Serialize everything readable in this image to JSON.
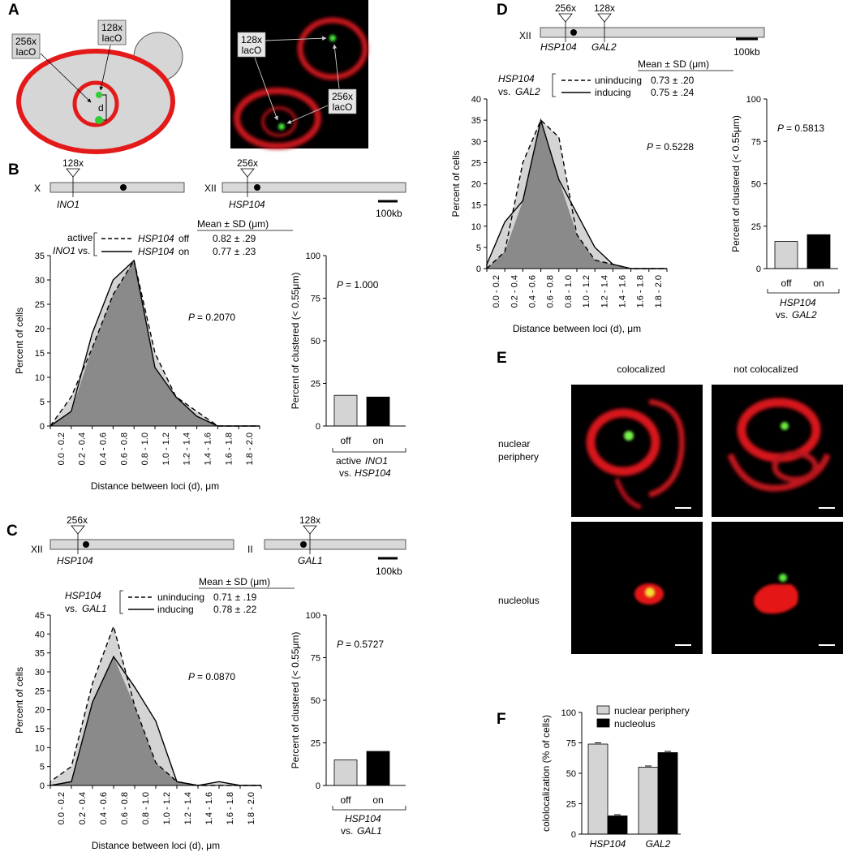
{
  "panels": {
    "A": {
      "label": "A",
      "schematic": {
        "lac128": "128x",
        "lac128b": "lacO",
        "lac256": "256x",
        "lac256b": "lacO",
        "d": "d"
      },
      "micro": {
        "lac128": "128x",
        "lac128b": "lacO",
        "lac256": "256x",
        "lac256b": "lacO"
      }
    },
    "B": {
      "label": "B",
      "chrom1": {
        "name": "X",
        "gene": "INO1",
        "mark": "128x"
      },
      "chrom2": {
        "name": "XII",
        "gene": "HSP104",
        "mark": "256x"
      },
      "scalebar": "100kb",
      "legend": {
        "header": "Mean ± SD (μm)",
        "group1": "active",
        "group2": "INO1",
        "group2b": "vs.",
        "row1_gene": "HSP104",
        "row1_state": "off",
        "row1_val": "0.82 ± .29",
        "row2_gene": "HSP104",
        "row2_state": "on",
        "row2_val": "0.77 ± .23"
      },
      "bar_sub1": "active",
      "bar_sub1b": "INO1",
      "bar_sub2": "vs.",
      "bar_sub2b": "HSP104"
    },
    "C": {
      "label": "C",
      "chrom1": {
        "name": "XII",
        "gene": "HSP104",
        "mark": "256x"
      },
      "chrom2": {
        "name": "II",
        "gene": "GAL1",
        "mark": "128x"
      },
      "scalebar": "100kb",
      "legend": {
        "header": "Mean ± SD (μm)",
        "group1": "HSP104",
        "group2": "vs.",
        "group2b": "GAL1",
        "row1_state": "uninducing",
        "row1_val": "0.71 ± .19",
        "row2_state": "inducing",
        "row2_val": "0.78 ± .22"
      },
      "bar_sub1": "HSP104",
      "bar_sub2": "vs.",
      "bar_sub2b": "GAL1"
    },
    "D": {
      "label": "D",
      "chrom1": {
        "name": "XII",
        "gene1": "HSP104",
        "gene2": "GAL2",
        "mark1": "256x",
        "mark2": "128x"
      },
      "scalebar": "100kb",
      "legend": {
        "header": "Mean ± SD (μm)",
        "group1": "HSP104",
        "group2": "vs.",
        "group2b": "GAL2",
        "row1_state": "uninducing",
        "row1_val": "0.73 ± .20",
        "row2_state": "inducing",
        "row2_val": "0.75 ± .24"
      },
      "bar_sub1": "HSP104",
      "bar_sub2": "vs.",
      "bar_sub2b": "GAL2"
    },
    "E": {
      "label": "E",
      "col1": "colocalized",
      "col2": "not colocalized",
      "row1a": "nuclear",
      "row1b": "periphery",
      "row2": "nucleolus"
    },
    "F": {
      "label": "F"
    }
  },
  "colors": {
    "light": "#d4d4d4",
    "dark": "#8a8a8a",
    "red": "#e01818",
    "green": "#3cdc2c"
  },
  "chart_data": [
    {
      "id": "B-hist",
      "type": "area",
      "x": [
        "0.0 - 0.2",
        "0.2 - 0.4",
        "0.4 - 0.6",
        "0.6 - 0.8",
        "0.8 - 1.0",
        "1.0 - 1.2",
        "1.2 - 1.4",
        "1.4 - 1.6",
        "1.6 - 1.8",
        "1.8 - 2.0"
      ],
      "series": [
        {
          "name": "HSP104 off",
          "style": "dashed",
          "values": [
            0,
            6,
            16,
            27,
            34,
            15,
            6,
            3,
            0,
            0
          ]
        },
        {
          "name": "HSP104 on",
          "style": "solid",
          "values": [
            0,
            3,
            19,
            30,
            34,
            12,
            6,
            2,
            0,
            0
          ]
        }
      ],
      "xlabel": "Distance between loci (d), μm",
      "ylabel": "Percent of cells",
      "ylim": [
        0,
        35
      ],
      "yticks": [
        0,
        5,
        10,
        15,
        20,
        25,
        30,
        35
      ],
      "annotation_label": "P",
      "annotation": "= 0.2070"
    },
    {
      "id": "B-bar",
      "type": "bar",
      "categories": [
        "off",
        "on"
      ],
      "values": [
        18,
        17
      ],
      "colors": [
        "#d4d4d4",
        "#000000"
      ],
      "ylabel": "Percent of clustered (< 0.55μm)",
      "ylim": [
        0,
        100
      ],
      "yticks": [
        0,
        25,
        50,
        75,
        100
      ],
      "annotation_label": "P",
      "annotation": "= 1.000"
    },
    {
      "id": "C-hist",
      "type": "area",
      "x": [
        "0.0 - 0.2",
        "0.2 - 0.4",
        "0.4 - 0.6",
        "0.6 - 0.8",
        "0.8 - 1.0",
        "1.0 - 1.2",
        "1.2 - 1.4",
        "1.4 - 1.6",
        "1.6 - 1.8",
        "1.8 - 2.0"
      ],
      "series": [
        {
          "name": "uninducing",
          "style": "dashed",
          "values": [
            1,
            5,
            27,
            42,
            21,
            6,
            1,
            0,
            0,
            0
          ]
        },
        {
          "name": "inducing",
          "style": "solid",
          "values": [
            0,
            1,
            22,
            34,
            26,
            17,
            1,
            0,
            1,
            0
          ]
        }
      ],
      "xlabel": "Distance between loci (d), μm",
      "ylabel": "Percent of cells",
      "ylim": [
        0,
        45
      ],
      "yticks": [
        0,
        5,
        10,
        15,
        20,
        25,
        30,
        35,
        40,
        45
      ],
      "annotation_label": "P",
      "annotation": "= 0.0870"
    },
    {
      "id": "C-bar",
      "type": "bar",
      "categories": [
        "off",
        "on"
      ],
      "values": [
        15,
        20
      ],
      "colors": [
        "#d4d4d4",
        "#000000"
      ],
      "ylabel": "Percent of clustered (< 0.55μm)",
      "ylim": [
        0,
        100
      ],
      "yticks": [
        0,
        25,
        50,
        75,
        100
      ],
      "annotation_label": "P",
      "annotation": "= 0.5727"
    },
    {
      "id": "D-hist",
      "type": "area",
      "x": [
        "0.0 - 0.2",
        "0.2 - 0.4",
        "0.4 - 0.6",
        "0.6 - 0.8",
        "0.8 - 1.0",
        "1.0 - 1.2",
        "1.2 - 1.4",
        "1.4 - 1.6",
        "1.6 - 1.8",
        "1.8 - 2.0"
      ],
      "series": [
        {
          "name": "uninducing",
          "style": "dashed",
          "values": [
            0,
            4,
            25,
            35,
            31,
            8,
            2,
            1,
            0,
            0
          ]
        },
        {
          "name": "inducing",
          "style": "solid",
          "values": [
            1,
            11,
            16,
            35,
            21,
            13,
            5,
            1,
            0,
            0
          ]
        }
      ],
      "xlabel": "Distance between loci (d), μm",
      "ylabel": "Percent of cells",
      "ylim": [
        0,
        40
      ],
      "yticks": [
        0,
        5,
        10,
        15,
        20,
        25,
        30,
        35,
        40
      ],
      "annotation_label": "P",
      "annotation": "= 0.5228"
    },
    {
      "id": "D-bar",
      "type": "bar",
      "categories": [
        "off",
        "on"
      ],
      "values": [
        16,
        20
      ],
      "colors": [
        "#d4d4d4",
        "#000000"
      ],
      "ylabel": "Percent of clustered (< 0.55μm)",
      "ylim": [
        0,
        100
      ],
      "yticks": [
        0,
        25,
        50,
        75,
        100
      ],
      "annotation_label": "P",
      "annotation": "= 0.5813"
    },
    {
      "id": "F-bar",
      "type": "bar",
      "categories": [
        "HSP104",
        "GAL2"
      ],
      "series": [
        {
          "name": "nuclear periphery",
          "color": "#d4d4d4",
          "values": [
            74,
            55
          ]
        },
        {
          "name": "nucleolus",
          "color": "#000000",
          "values": [
            15,
            67
          ]
        }
      ],
      "ylabel": "cololocalization (% of cells)",
      "ylim": [
        0,
        100
      ],
      "yticks": [
        0,
        25,
        50,
        75,
        100
      ]
    }
  ]
}
